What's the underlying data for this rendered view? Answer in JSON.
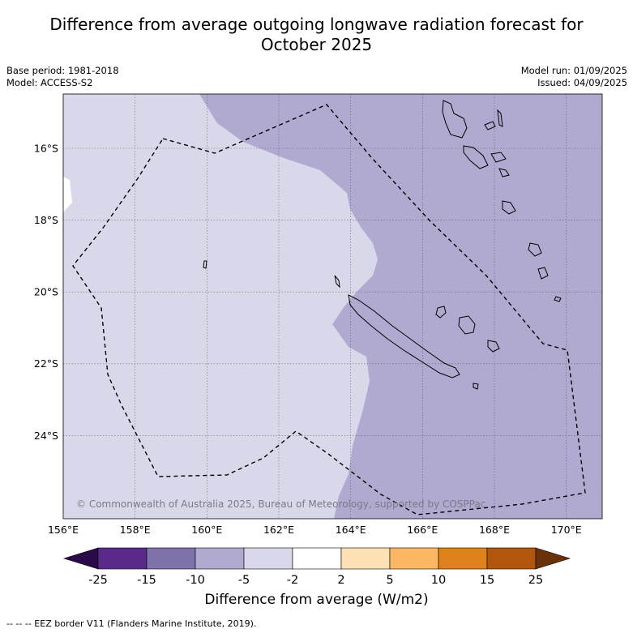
{
  "title_line1": "Difference from average outgoing longwave radiation forecast for",
  "title_line2": "October 2025",
  "base_period": "Base period: 1981-2018",
  "model": "Model: ACCESS-S2",
  "model_run": "Model run: 01/09/2025",
  "issued": "Issued: 04/09/2025",
  "copyright": "© Commonwealth of Australia 2025, Bureau of Meteorology, supported by COSPPac",
  "lon_labels": [
    "156°E",
    "158°E",
    "160°E",
    "162°E",
    "164°E",
    "166°E",
    "168°E",
    "170°E"
  ],
  "lat_labels": [
    "16°S",
    "18°S",
    "20°S",
    "22°S",
    "24°S"
  ],
  "colorbar": {
    "title": "Difference from average (W/m2)",
    "ticks": [
      "-25",
      "-15",
      "-10",
      "-5",
      "-2",
      "2",
      "5",
      "10",
      "15",
      "25"
    ],
    "colors": [
      "#2b0a4a",
      "#5a2a8a",
      "#7f72ab",
      "#b0a9d0",
      "#d8d8ea",
      "#ffffff",
      "#fde0b4",
      "#fbb763",
      "#e0821c",
      "#b1560c",
      "#6b3108"
    ]
  },
  "footnote": "-- -- -- EEZ border V11 (Flanders Marine Institute, 2019).",
  "legend_categories": {
    "light_lavender": "-5 to -2",
    "medium_lavender": "-10 to -5"
  }
}
